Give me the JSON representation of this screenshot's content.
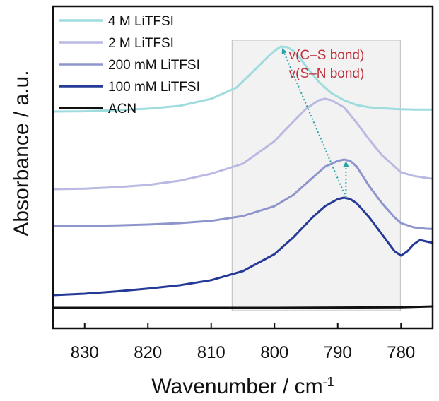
{
  "chart_data": {
    "type": "line",
    "xlabel": "Wavenumber / cm",
    "xlabel_superscript": "-1",
    "ylabel": "Absorbance / a.u.",
    "xlim": [
      835,
      775
    ],
    "x_reversed": true,
    "xticks": [
      830,
      820,
      810,
      800,
      790,
      780
    ],
    "ylim": [
      0,
      1
    ],
    "y_ticks_shown": false,
    "grid": false,
    "legend_position": "top-left",
    "highlight_region": {
      "x_from": 806.7,
      "x_to": 780.1,
      "color": "#d8d8d8"
    },
    "annotations": [
      {
        "text": "v(C–S bond)",
        "color": "#c0303a"
      },
      {
        "text": "v(S–N bond)",
        "color": "#c0303a"
      }
    ],
    "arrows": [
      {
        "from": [
          788.7,
          0.4
        ],
        "to": [
          798.7,
          0.935
        ],
        "color": "#2aa3a6",
        "style": "dotted"
      },
      {
        "from": [
          788.7,
          0.4
        ],
        "to": [
          788.7,
          0.535
        ],
        "color": "#2aa3a6",
        "style": "dotted"
      }
    ],
    "series": [
      {
        "name": "4 M LiTFSI",
        "color": "#9fdcde",
        "x": [
          835,
          830,
          825,
          820,
          815,
          810,
          806,
          803,
          801,
          800,
          799,
          798,
          797,
          796,
          795,
          793,
          791,
          789,
          787,
          785,
          783,
          781,
          780,
          778,
          776,
          775
        ],
        "y": [
          0.705,
          0.706,
          0.71,
          0.715,
          0.725,
          0.75,
          0.79,
          0.855,
          0.9,
          0.92,
          0.935,
          0.933,
          0.92,
          0.895,
          0.865,
          0.81,
          0.77,
          0.745,
          0.728,
          0.72,
          0.717,
          0.714,
          0.713,
          0.712,
          0.712,
          0.712
        ]
      },
      {
        "name": "2 M LiTFSI",
        "color": "#b9b9e2",
        "x": [
          835,
          830,
          825,
          820,
          815,
          810,
          805,
          800,
          797,
          795,
          793,
          792,
          791,
          789,
          787,
          785,
          783,
          781,
          780,
          778,
          776,
          775
        ],
        "y": [
          0.43,
          0.432,
          0.437,
          0.445,
          0.46,
          0.485,
          0.52,
          0.6,
          0.67,
          0.715,
          0.745,
          0.75,
          0.745,
          0.72,
          0.665,
          0.605,
          0.55,
          0.51,
          0.49,
          0.477,
          0.47,
          0.467
        ]
      },
      {
        "name": "200 mM LiTFSI",
        "color": "#8e95cc",
        "x": [
          835,
          830,
          825,
          820,
          815,
          810,
          805,
          800,
          797,
          794,
          792,
          790,
          789,
          788,
          787,
          785,
          783,
          781,
          780,
          778,
          776,
          775
        ],
        "y": [
          0.3,
          0.3,
          0.302,
          0.305,
          0.31,
          0.318,
          0.335,
          0.37,
          0.41,
          0.47,
          0.51,
          0.53,
          0.535,
          0.53,
          0.51,
          0.44,
          0.38,
          0.33,
          0.31,
          0.295,
          0.29,
          0.289
        ]
      },
      {
        "name": "100 mM LiTFSI",
        "color": "#253a96",
        "x": [
          835,
          830,
          825,
          820,
          815,
          810,
          805,
          800,
          797,
          794,
          792,
          790,
          789,
          788,
          787,
          785,
          783,
          781,
          780,
          779,
          778,
          777,
          776,
          775
        ],
        "y": [
          0.055,
          0.06,
          0.068,
          0.078,
          0.09,
          0.108,
          0.14,
          0.2,
          0.26,
          0.33,
          0.37,
          0.395,
          0.4,
          0.395,
          0.38,
          0.33,
          0.27,
          0.21,
          0.195,
          0.21,
          0.235,
          0.25,
          0.245,
          0.24
        ]
      },
      {
        "name": "ACN",
        "color": "#111111",
        "x": [
          835,
          800,
          780,
          775
        ],
        "y": [
          0.01,
          0.01,
          0.012,
          0.015
        ]
      }
    ]
  }
}
